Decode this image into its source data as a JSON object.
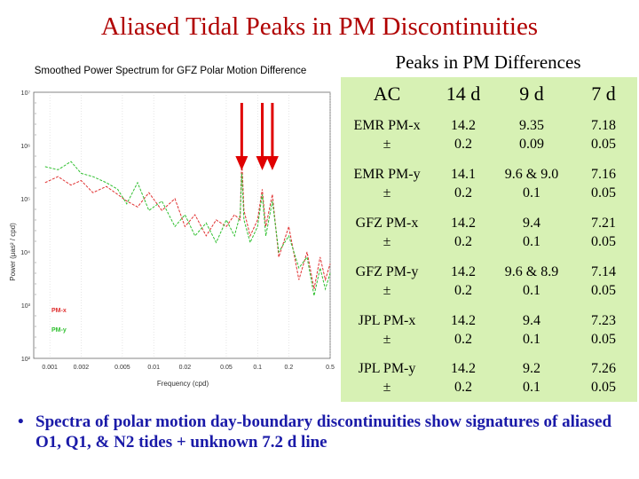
{
  "slide": {
    "title": "Aliased Tidal Peaks in PM Discontinuities",
    "bullet_marker": "•",
    "bullet_text": "Spectra of polar motion day-boundary discontinuities show signatures of aliased O1, Q1, & N2 tides + unknown 7.2 d line"
  },
  "chart": {
    "title": "Smoothed Power Spectrum for GFZ Polar Motion Difference",
    "ylabel": "Power (μas² / cpd)",
    "xlabel": "Frequency (cpd)",
    "yticks": [
      "10⁷",
      "10⁶",
      "10⁵",
      "10⁴",
      "10³",
      "10²"
    ],
    "xticks": [
      "0.001",
      "0.002",
      "0.005",
      "0.01",
      "0.02",
      "0.05",
      "0.1",
      "0.2",
      "0.5"
    ],
    "legend": [
      "PM-x",
      "PM-y"
    ]
  },
  "chart_data": {
    "type": "line",
    "title": "Smoothed Power Spectrum for GFZ Polar Motion Difference",
    "xlabel": "Frequency (cpd)",
    "ylabel": "Power (μas² / cpd)",
    "xscale": "log",
    "yscale": "log",
    "xlim": [
      0.0007,
      0.5
    ],
    "ylim": [
      100,
      10000000
    ],
    "legend_position": "bottom-left",
    "colors": {
      "PM-x": "#e03030",
      "PM-y": "#30c030",
      "arrows": "#e00000"
    },
    "arrow_frequencies": [
      0.0704,
      0.1111,
      0.1389
    ],
    "series": [
      {
        "name": "PM-x",
        "x": [
          0.0009,
          0.0012,
          0.0016,
          0.002,
          0.0026,
          0.0035,
          0.0045,
          0.0055,
          0.007,
          0.009,
          0.012,
          0.016,
          0.02,
          0.025,
          0.032,
          0.04,
          0.05,
          0.06,
          0.068,
          0.0704,
          0.074,
          0.085,
          0.1,
          0.111,
          0.12,
          0.139,
          0.16,
          0.2,
          0.25,
          0.3,
          0.35,
          0.4,
          0.45,
          0.5
        ],
        "y": [
          200000,
          260000,
          180000,
          220000,
          130000,
          170000,
          120000,
          90000,
          70000,
          130000,
          60000,
          100000,
          30000,
          50000,
          20000,
          40000,
          30000,
          50000,
          40000,
          600000,
          60000,
          20000,
          40000,
          150000,
          30000,
          120000,
          8000,
          30000,
          3000,
          10000,
          2000,
          8000,
          3000,
          6000
        ]
      },
      {
        "name": "PM-y",
        "x": [
          0.0009,
          0.0012,
          0.0016,
          0.002,
          0.0026,
          0.0035,
          0.0045,
          0.0055,
          0.007,
          0.009,
          0.012,
          0.016,
          0.02,
          0.025,
          0.032,
          0.04,
          0.05,
          0.06,
          0.068,
          0.0704,
          0.074,
          0.085,
          0.1,
          0.111,
          0.12,
          0.139,
          0.16,
          0.2,
          0.25,
          0.3,
          0.35,
          0.4,
          0.45,
          0.5
        ],
        "y": [
          400000,
          350000,
          500000,
          300000,
          260000,
          200000,
          150000,
          80000,
          200000,
          60000,
          90000,
          30000,
          50000,
          20000,
          35000,
          15000,
          40000,
          20000,
          50000,
          300000,
          40000,
          15000,
          30000,
          120000,
          20000,
          90000,
          10000,
          20000,
          5000,
          8000,
          1500,
          5000,
          2000,
          4000
        ]
      }
    ]
  },
  "table": {
    "title": "Peaks in PM Differences",
    "headers": [
      "AC",
      "14 d",
      "9 d",
      "7 d"
    ],
    "rows": [
      {
        "label": "EMR PM-x",
        "v14": "14.2",
        "v9": "9.35",
        "v7": "7.18",
        "pm": "±",
        "e14": "0.2",
        "e9": "0.09",
        "e7": "0.05"
      },
      {
        "label": "EMR PM-y",
        "v14": "14.1",
        "v9": "9.6 & 9.0",
        "v7": "7.16",
        "pm": "±",
        "e14": "0.2",
        "e9": "0.1",
        "e7": "0.05"
      },
      {
        "label": "GFZ PM-x",
        "v14": "14.2",
        "v9": "9.4",
        "v7": "7.21",
        "pm": "±",
        "e14": "0.2",
        "e9": "0.1",
        "e7": "0.05"
      },
      {
        "label": "GFZ PM-y",
        "v14": "14.2",
        "v9": "9.6 & 8.9",
        "v7": "7.14",
        "pm": "±",
        "e14": "0.2",
        "e9": "0.1",
        "e7": "0.05"
      },
      {
        "label": "JPL PM-x",
        "v14": "14.2",
        "v9": "9.4",
        "v7": "7.23",
        "pm": "±",
        "e14": "0.2",
        "e9": "0.1",
        "e7": "0.05"
      },
      {
        "label": "JPL PM-y",
        "v14": "14.2",
        "v9": "9.2",
        "v7": "7.26",
        "pm": "±",
        "e14": "0.2",
        "e9": "0.1",
        "e7": "0.05"
      }
    ]
  }
}
